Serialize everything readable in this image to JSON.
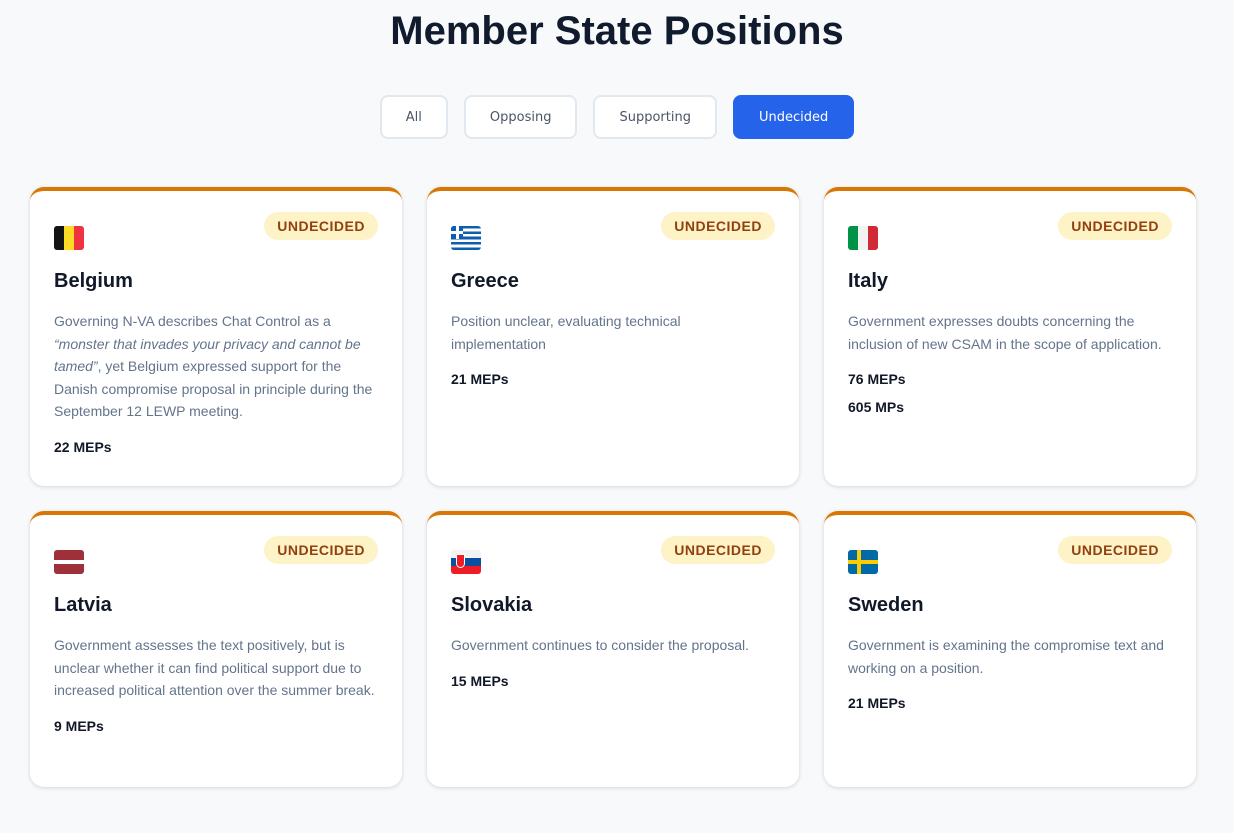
{
  "title": "Member State Positions",
  "filters": [
    {
      "label": "All"
    },
    {
      "label": "Opposing"
    },
    {
      "label": "Supporting"
    },
    {
      "label": "Undecided",
      "active": true
    }
  ],
  "accent": "#d97706",
  "cards": [
    {
      "country": "Belgium",
      "status": "UNDECIDED",
      "desc_pre": "Governing N-VA describes Chat Control as a ",
      "desc_quote": "“monster that invades your privacy and cannot be tamed”",
      "desc_post": ", yet Belgium expressed support for the Danish compromise proposal in principle during the September 12 LEWP meeting.",
      "meps": "22 MEPs"
    },
    {
      "country": "Greece",
      "status": "UNDECIDED",
      "desc": "Position unclear, evaluating technical implementation",
      "meps": "21 MEPs"
    },
    {
      "country": "Italy",
      "status": "UNDECIDED",
      "desc": "Government expresses doubts concerning the inclusion of new CSAM in the scope of application.",
      "meps": "76 MEPs",
      "mps": "605 MPs"
    },
    {
      "country": "Latvia",
      "status": "UNDECIDED",
      "desc": "Government assesses the text positively, but is unclear whether it can find political support due to increased political attention over the summer break.",
      "meps": "9 MEPs"
    },
    {
      "country": "Slovakia",
      "status": "UNDECIDED",
      "desc": "Government continues to consider the proposal.",
      "meps": "15 MEPs"
    },
    {
      "country": "Sweden",
      "status": "UNDECIDED",
      "desc": "Government is examining the compromise text and working on a position.",
      "meps": "21 MEPs"
    }
  ]
}
